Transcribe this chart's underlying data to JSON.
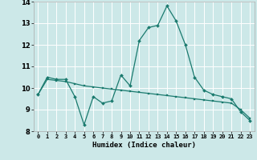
{
  "background_color": "#cce8e8",
  "grid_color": "#ffffff",
  "line_color": "#1a7a6e",
  "xlabel": "Humidex (Indice chaleur)",
  "ylim": [
    8,
    14
  ],
  "xlim": [
    -0.5,
    23.5
  ],
  "yticks": [
    8,
    9,
    10,
    11,
    12,
    13,
    14
  ],
  "xticks": [
    0,
    1,
    2,
    3,
    4,
    5,
    6,
    7,
    8,
    9,
    10,
    11,
    12,
    13,
    14,
    15,
    16,
    17,
    18,
    19,
    20,
    21,
    22,
    23
  ],
  "series1_x": [
    0,
    1,
    2,
    3,
    4,
    5,
    6,
    7,
    8,
    9,
    10,
    11,
    12,
    13,
    14,
    15,
    16,
    17,
    18,
    19,
    20,
    21,
    22,
    23
  ],
  "series1_y": [
    9.7,
    10.5,
    10.4,
    10.4,
    9.6,
    8.3,
    9.6,
    9.3,
    9.4,
    10.6,
    10.1,
    12.2,
    12.8,
    12.9,
    13.8,
    13.1,
    12.0,
    10.5,
    9.9,
    9.7,
    9.6,
    9.5,
    8.9,
    8.5
  ],
  "series2_x": [
    0,
    1,
    2,
    3,
    4,
    5,
    6,
    7,
    8,
    9,
    10,
    11,
    12,
    13,
    14,
    15,
    16,
    17,
    18,
    19,
    20,
    21,
    22,
    23
  ],
  "series2_y": [
    9.7,
    10.4,
    10.35,
    10.3,
    10.2,
    10.1,
    10.05,
    10.0,
    9.95,
    9.9,
    9.85,
    9.8,
    9.75,
    9.7,
    9.65,
    9.6,
    9.55,
    9.5,
    9.45,
    9.4,
    9.35,
    9.3,
    9.0,
    8.6
  ]
}
